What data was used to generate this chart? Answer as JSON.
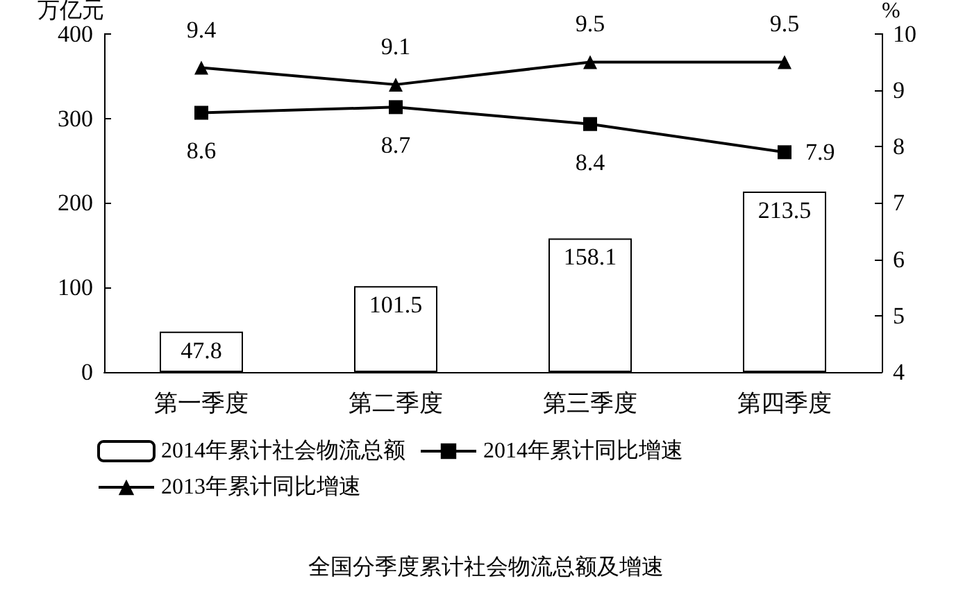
{
  "chart_data": {
    "type": "bar",
    "title": "全国分季度累计社会物流总额及增速",
    "ylabel": "万亿元",
    "y2label": "%",
    "categories": [
      "第一季度",
      "第二季度",
      "第三季度",
      "第四季度"
    ],
    "series": [
      {
        "name": "2014年累计社会物流总额",
        "color": "#ffffff",
        "values": [
          47.8,
          101.5,
          158.1,
          213.5
        ]
      },
      {
        "name": "2014年累计同比增速",
        "type": "line",
        "axis": "y2",
        "marker": "square",
        "color": "#000000",
        "values": [
          8.6,
          8.7,
          8.4,
          7.9
        ]
      },
      {
        "name": "2013年累计同比增速",
        "type": "line",
        "axis": "y2",
        "marker": "triangle",
        "color": "#000000",
        "values": [
          9.4,
          9.1,
          9.5,
          9.5
        ]
      }
    ],
    "ylim": [
      0,
      400
    ],
    "yticks": [
      0,
      100,
      200,
      300,
      400
    ],
    "y2lim": [
      4,
      10
    ],
    "y2ticks": [
      4,
      5,
      6,
      7,
      8,
      9,
      10
    ],
    "data_labels": true,
    "grid": false,
    "legend": "bottom",
    "line_style": "solid"
  }
}
